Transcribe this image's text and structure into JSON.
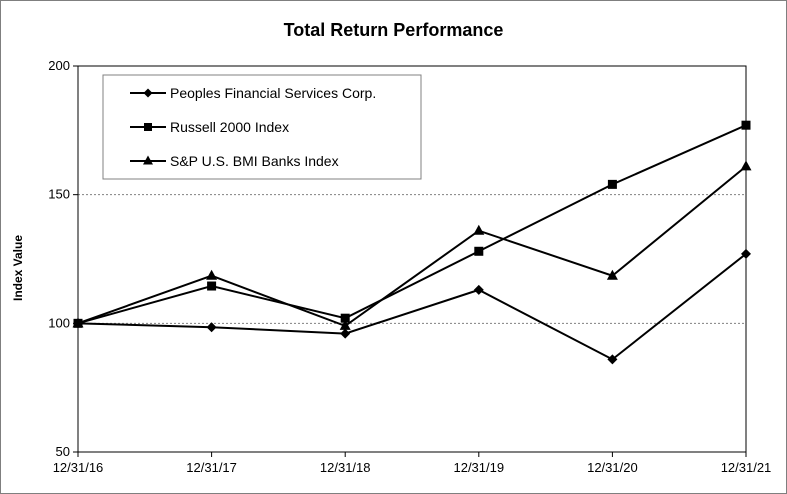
{
  "chart_data": {
    "type": "line",
    "title": "Total Return Performance",
    "xlabel": "",
    "ylabel": "Index Value",
    "categories": [
      "12/31/16",
      "12/31/17",
      "12/31/18",
      "12/31/19",
      "12/31/20",
      "12/31/21"
    ],
    "ylim": [
      50,
      200
    ],
    "yticks": [
      50,
      100,
      150,
      200
    ],
    "grid": "horizontal dashed at 100 and 150",
    "legend_position": "top-left",
    "series": [
      {
        "name": "Peoples Financial Services Corp.",
        "marker": "diamond",
        "values": [
          100,
          98.5,
          96,
          113,
          86,
          127
        ]
      },
      {
        "name": "Russell 2000 Index",
        "marker": "square",
        "values": [
          100,
          114.5,
          102,
          128,
          154,
          177
        ]
      },
      {
        "name": "S&P U.S. BMI Banks Index",
        "marker": "triangle",
        "values": [
          100,
          118.5,
          99,
          136,
          118.5,
          161
        ]
      }
    ]
  }
}
